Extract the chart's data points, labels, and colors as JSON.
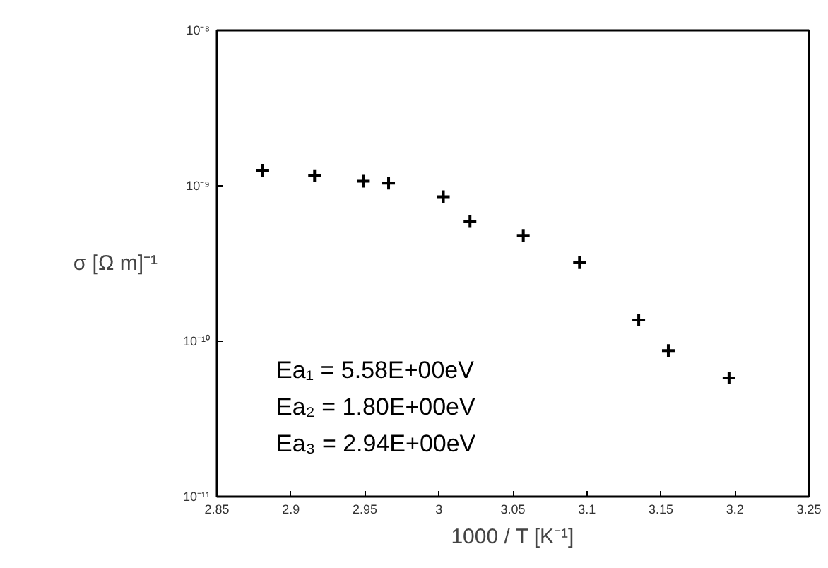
{
  "chart_data": {
    "type": "scatter",
    "xlabel": "1000 / T [K⁻¹]",
    "ylabel": "σ [Ω m]⁻¹",
    "x": [
      2.881,
      2.916,
      2.949,
      2.966,
      3.003,
      3.021,
      3.057,
      3.095,
      3.135,
      3.155,
      3.196
    ],
    "series": [
      {
        "color": "#000000",
        "values": [
          1.26e-09,
          1.16e-09,
          1.07e-09,
          1.04e-09,
          8.5e-10,
          5.9e-10,
          4.8e-10,
          3.2e-10,
          1.37e-10,
          8.7e-11,
          5.8e-11
        ]
      }
    ],
    "xlim": [
      2.85,
      3.25
    ],
    "xticks": [
      2.85,
      2.9,
      2.95,
      3,
      3.05,
      3.1,
      3.15,
      3.2,
      3.25
    ],
    "ylim": [
      1e-11,
      1e-08
    ],
    "yticks": [
      {
        "value": 1e-11,
        "label": "10⁻¹¹"
      },
      {
        "value": 1e-10,
        "label": "10⁻¹⁰"
      },
      {
        "value": 1e-09,
        "label": "10⁻⁹"
      },
      {
        "value": 1e-08,
        "label": "10⁻⁸"
      }
    ],
    "log": "y",
    "grid": false,
    "marker": "cross",
    "annotations": [
      "Ea₁ =  5.58E+00eV",
      "Ea₂ =  1.80E+00eV",
      "Ea₃ =  2.94E+00eV"
    ]
  }
}
